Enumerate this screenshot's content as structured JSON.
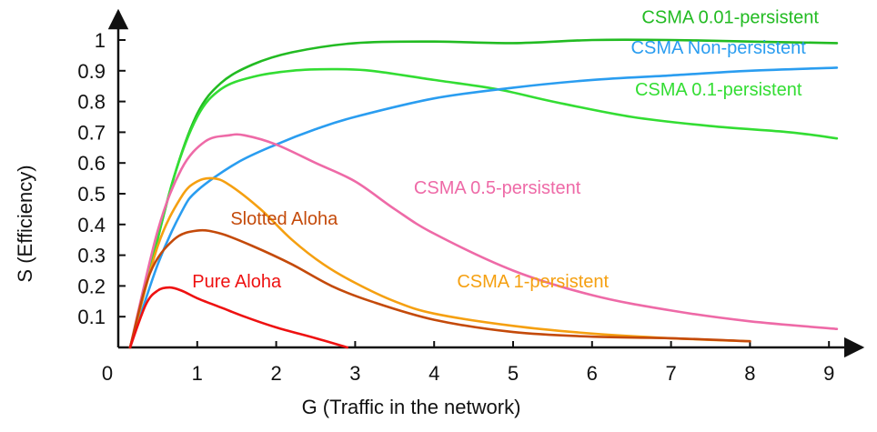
{
  "chart_data": {
    "type": "line",
    "xlabel": "G (Traffic in the network)",
    "ylabel": "S (Efficiency)",
    "xlim": [
      0,
      9.3
    ],
    "ylim": [
      0,
      1.05
    ],
    "xticks": [
      "0",
      "1",
      "2",
      "3",
      "4",
      "5",
      "6",
      "7",
      "8",
      "9"
    ],
    "yticks": [
      "0.1",
      "0.2",
      "0.3",
      "0.4",
      "0.5",
      "0.6",
      "0.7",
      "0.8",
      "0.9",
      "1"
    ],
    "grid": false,
    "legend": "inline",
    "series": [
      {
        "name": "CSMA 0.01-persistent",
        "color": "#22bb22",
        "x": [
          0.15,
          0.4,
          0.7,
          1.0,
          1.3,
          1.7,
          2.2,
          3.0,
          4.0,
          5.0,
          6.0,
          7.0,
          8.0,
          9.1
        ],
        "y": [
          0.0,
          0.25,
          0.55,
          0.76,
          0.86,
          0.92,
          0.96,
          0.99,
          0.995,
          0.99,
          1.0,
          1.0,
          0.995,
          0.99
        ]
      },
      {
        "name": "CSMA 0.1-persistent",
        "color": "#33dd33",
        "x": [
          0.15,
          0.4,
          0.7,
          1.0,
          1.3,
          1.7,
          2.2,
          2.7,
          3.2,
          4.0,
          4.8,
          5.5,
          6.5,
          7.5,
          8.5,
          9.1
        ],
        "y": [
          0.0,
          0.25,
          0.55,
          0.75,
          0.84,
          0.88,
          0.9,
          0.905,
          0.9,
          0.87,
          0.84,
          0.8,
          0.75,
          0.72,
          0.7,
          0.68
        ]
      },
      {
        "name": "CSMA Non-persistent",
        "color": "#2a9df0",
        "x": [
          0.15,
          0.5,
          0.8,
          1.0,
          1.5,
          2.0,
          2.5,
          3.0,
          4.0,
          5.0,
          6.0,
          7.0,
          8.0,
          9.1
        ],
        "y": [
          0.0,
          0.27,
          0.44,
          0.51,
          0.6,
          0.66,
          0.71,
          0.75,
          0.81,
          0.845,
          0.87,
          0.885,
          0.9,
          0.91
        ]
      },
      {
        "name": "CSMA 0.5-persistent",
        "color": "#ee6aa7",
        "x": [
          0.15,
          0.5,
          0.8,
          1.1,
          1.4,
          1.6,
          2.0,
          2.5,
          3.0,
          3.5,
          4.0,
          5.0,
          6.0,
          7.0,
          8.0,
          9.1
        ],
        "y": [
          0.0,
          0.38,
          0.58,
          0.67,
          0.69,
          0.69,
          0.66,
          0.6,
          0.54,
          0.45,
          0.37,
          0.25,
          0.17,
          0.12,
          0.085,
          0.06
        ]
      },
      {
        "name": "CSMA 1-persistent",
        "color": "#f5a011",
        "x": [
          0.15,
          0.5,
          0.8,
          1.0,
          1.2,
          1.4,
          1.8,
          2.2,
          2.6,
          3.0,
          3.5,
          4.0,
          5.0,
          6.0,
          7.0,
          8.0
        ],
        "y": [
          0.0,
          0.33,
          0.49,
          0.54,
          0.55,
          0.53,
          0.45,
          0.35,
          0.27,
          0.21,
          0.15,
          0.11,
          0.07,
          0.045,
          0.03,
          0.02
        ]
      },
      {
        "name": "Slotted Aloha",
        "color": "#c44a0a",
        "x": [
          0.15,
          0.4,
          0.7,
          1.0,
          1.3,
          1.7,
          2.2,
          2.7,
          3.2,
          4.0,
          5.0,
          6.0,
          7.0,
          8.0
        ],
        "y": [
          0.0,
          0.24,
          0.35,
          0.38,
          0.37,
          0.33,
          0.27,
          0.2,
          0.15,
          0.09,
          0.05,
          0.035,
          0.03,
          0.02
        ]
      },
      {
        "name": "Pure Aloha",
        "color": "#ee1111",
        "x": [
          0.15,
          0.35,
          0.5,
          0.65,
          0.8,
          1.0,
          1.3,
          1.6,
          2.0,
          2.5,
          2.9
        ],
        "y": [
          0.0,
          0.14,
          0.185,
          0.195,
          0.185,
          0.16,
          0.13,
          0.1,
          0.065,
          0.03,
          0.0
        ]
      }
    ],
    "annotations": [
      {
        "text": "CSMA 0.01-persistent",
        "series": "CSMA 0.01-persistent",
        "x": 7.75,
        "y": 1.055,
        "color": "#22bb22"
      },
      {
        "text": "CSMA Non-persistent",
        "series": "CSMA Non-persistent",
        "x": 7.6,
        "y": 0.955,
        "color": "#2a9df0"
      },
      {
        "text": "CSMA 0.1-persistent",
        "series": "CSMA 0.1-persistent",
        "x": 7.6,
        "y": 0.82,
        "color": "#33dd33"
      },
      {
        "text": "CSMA 0.5-persistent",
        "series": "CSMA 0.5-persistent",
        "x": 4.8,
        "y": 0.5,
        "color": "#ee6aa7"
      },
      {
        "text": "Slotted Aloha",
        "series": "Slotted Aloha",
        "x": 2.1,
        "y": 0.4,
        "color": "#c44a0a"
      },
      {
        "text": "CSMA 1-persistent",
        "series": "CSMA 1-persistent",
        "x": 5.25,
        "y": 0.195,
        "color": "#f5a011"
      },
      {
        "text": "Pure Aloha",
        "series": "Pure Aloha",
        "x": 1.5,
        "y": 0.195,
        "color": "#ee1111"
      }
    ]
  }
}
